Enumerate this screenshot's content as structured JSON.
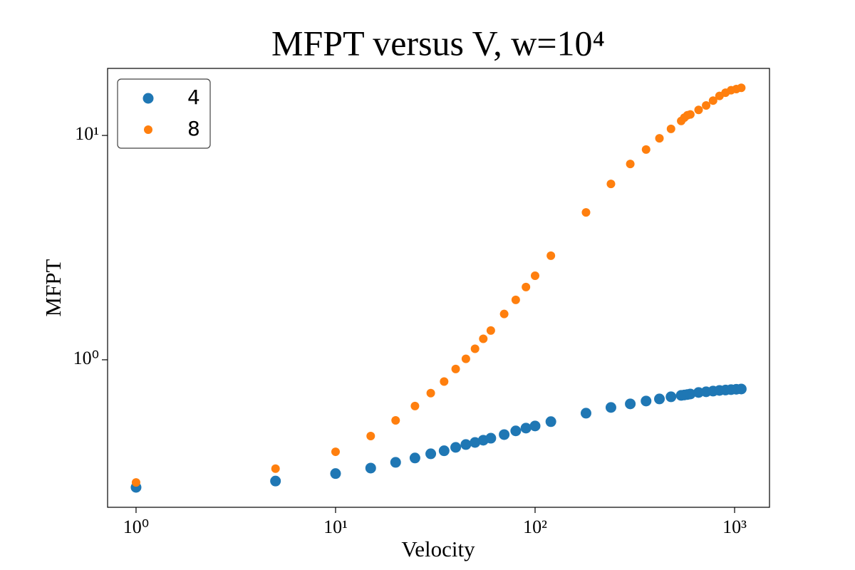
{
  "chart_data": {
    "type": "scatter",
    "title": "MFPT versus V, w=10⁴",
    "xlabel": "Velocity",
    "ylabel": "MFPT",
    "xscale": "log",
    "yscale": "log",
    "x": [
      1,
      5,
      10,
      15,
      20,
      25,
      30,
      35,
      40,
      45,
      50,
      55,
      60,
      70,
      80,
      90,
      100,
      120,
      180,
      240,
      300,
      360,
      420,
      480,
      540,
      560,
      580,
      600,
      660,
      720,
      780,
      840,
      900,
      960,
      1020,
      1080
    ],
    "series": [
      {
        "name": "4",
        "color": "#1f77b4",
        "values": [
          0.27,
          0.288,
          0.311,
          0.329,
          0.349,
          0.365,
          0.381,
          0.393,
          0.407,
          0.419,
          0.428,
          0.438,
          0.447,
          0.464,
          0.482,
          0.496,
          0.507,
          0.53,
          0.578,
          0.613,
          0.636,
          0.655,
          0.669,
          0.684,
          0.694,
          0.697,
          0.7,
          0.704,
          0.715,
          0.72,
          0.725,
          0.73,
          0.733,
          0.736,
          0.739,
          0.741
        ]
      },
      {
        "name": "8",
        "color": "#ff7f0e",
        "values": [
          0.284,
          0.327,
          0.389,
          0.457,
          0.537,
          0.622,
          0.71,
          0.8,
          0.91,
          1.01,
          1.12,
          1.24,
          1.35,
          1.6,
          1.85,
          2.11,
          2.37,
          2.91,
          4.54,
          6.08,
          7.46,
          8.65,
          9.71,
          10.7,
          11.6,
          12.0,
          12.3,
          12.4,
          13.0,
          13.6,
          14.3,
          15.0,
          15.5,
          15.9,
          16.1,
          16.3
        ]
      }
    ],
    "xlim": [
      0.72,
      1496
    ],
    "ylim": [
      0.22,
      19.9
    ],
    "xticks": [
      {
        "value": 1,
        "label": "10⁰"
      },
      {
        "value": 10,
        "label": "10¹"
      },
      {
        "value": 100,
        "label": "10²"
      },
      {
        "value": 1000,
        "label": "10³"
      }
    ],
    "yticks": [
      {
        "value": 1,
        "label": "10⁰"
      },
      {
        "value": 10,
        "label": "10¹"
      }
    ],
    "legend": "upper left"
  }
}
